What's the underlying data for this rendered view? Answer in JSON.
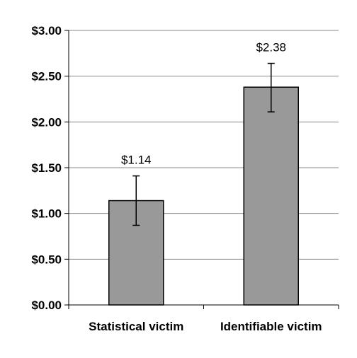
{
  "chart_data": {
    "type": "bar",
    "categories": [
      "Statistical victim",
      "Identifiable victim"
    ],
    "values": [
      1.14,
      2.38
    ],
    "data_labels": [
      "$1.14",
      "$2.38"
    ],
    "error_bars": [
      {
        "low": 0.87,
        "high": 1.41
      },
      {
        "low": 2.11,
        "high": 2.64
      }
    ],
    "ylim": [
      0,
      3
    ],
    "yticks": [
      {
        "value": 0,
        "label": "$0.00"
      },
      {
        "value": 0.5,
        "label": "$0.50"
      },
      {
        "value": 1,
        "label": "$1.00"
      },
      {
        "value": 1.5,
        "label": "$1.50"
      },
      {
        "value": 2,
        "label": "$2.00"
      },
      {
        "value": 2.5,
        "label": "$2.50"
      },
      {
        "value": 3,
        "label": "$3.00"
      }
    ],
    "grid": true,
    "colors": {
      "bar": "#999999",
      "grid": "#888888",
      "axis": "#000000"
    }
  }
}
